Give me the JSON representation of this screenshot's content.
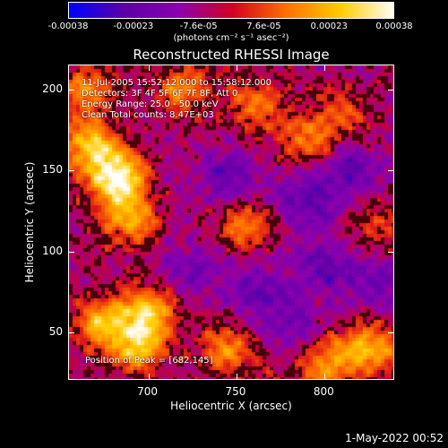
{
  "chart_data": {
    "type": "heatmap",
    "title": "Reconstructed RHESSI Image",
    "xlabel": "Heliocentric X (arcsec)",
    "ylabel": "Heliocentric Y (arcsec)",
    "xlim": [
      655,
      840
    ],
    "ylim": [
      20,
      215
    ],
    "x_ticks": [
      "700",
      "750",
      "800"
    ],
    "y_ticks": [
      "50",
      "100",
      "150",
      "200"
    ],
    "colorbar": {
      "ticks": [
        "-0.00038",
        "-0.00023",
        "-7.6e-05",
        "7.6e-05",
        "0.00023",
        "0.00038"
      ],
      "unit": "(photons cm⁻² s⁻¹ asec⁻²)",
      "range": [
        -0.00038,
        0.00038
      ],
      "colors": [
        "#0000ff",
        "#5a00a8",
        "#8a00b0",
        "#d10020",
        "#ff7000",
        "#ffcc00",
        "#ffffff"
      ]
    },
    "annotations": {
      "time_range": "11-Jul-2005 15:52:12.000 to 15:58:12.000",
      "detectors": "Detectors: 3F 4F 5F 6F 7F 8F, Att 0",
      "energy_range": "Energy Range: 25.0 - 50.0 keV",
      "method_counts": "Clean     Total counts: 8.47E+03",
      "peak": "Position of Peak = [682,145]"
    },
    "hot_regions": [
      {
        "x": 682,
        "y": 145,
        "intensity": 1.0
      },
      {
        "x": 668,
        "y": 165,
        "intensity": 0.75
      },
      {
        "x": 690,
        "y": 120,
        "intensity": 0.6
      },
      {
        "x": 700,
        "y": 62,
        "intensity": 0.75
      },
      {
        "x": 675,
        "y": 55,
        "intensity": 0.7
      },
      {
        "x": 695,
        "y": 40,
        "intensity": 0.65
      },
      {
        "x": 755,
        "y": 115,
        "intensity": 0.5
      },
      {
        "x": 745,
        "y": 40,
        "intensity": 0.55
      },
      {
        "x": 825,
        "y": 40,
        "intensity": 0.7
      },
      {
        "x": 800,
        "y": 30,
        "intensity": 0.5
      },
      {
        "x": 720,
        "y": 200,
        "intensity": 0.5
      },
      {
        "x": 760,
        "y": 190,
        "intensity": 0.45
      },
      {
        "x": 790,
        "y": 170,
        "intensity": 0.45
      },
      {
        "x": 665,
        "y": 200,
        "intensity": 0.55
      },
      {
        "x": 810,
        "y": 185,
        "intensity": 0.35
      },
      {
        "x": 830,
        "y": 115,
        "intensity": 0.3
      }
    ],
    "cold_regions": [
      {
        "x": 745,
        "y": 145,
        "intensity": 0.55
      },
      {
        "x": 790,
        "y": 130,
        "intensity": 0.65
      },
      {
        "x": 815,
        "y": 150,
        "intensity": 0.55
      },
      {
        "x": 800,
        "y": 90,
        "intensity": 0.6
      },
      {
        "x": 760,
        "y": 75,
        "intensity": 0.5
      },
      {
        "x": 780,
        "y": 55,
        "intensity": 0.45
      },
      {
        "x": 830,
        "y": 80,
        "intensity": 0.5
      },
      {
        "x": 725,
        "y": 90,
        "intensity": 0.45
      }
    ]
  },
  "footer": {
    "timestamp": "1-May-2022 00:52"
  }
}
